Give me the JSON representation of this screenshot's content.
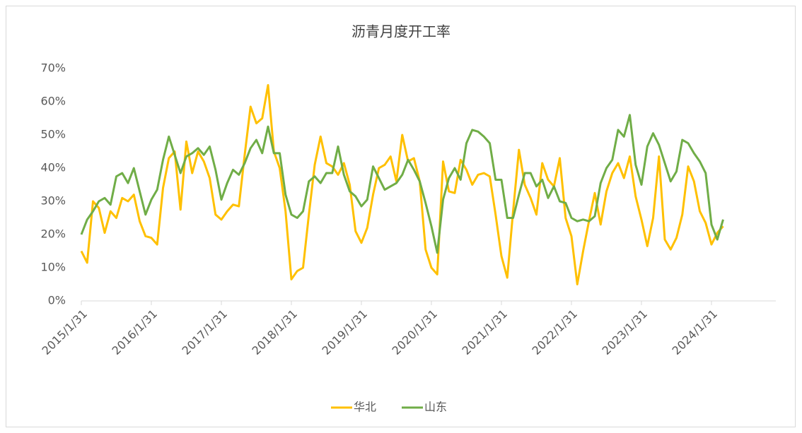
{
  "chart_data": {
    "type": "line",
    "title": "沥青月度开工率",
    "categories": [
      "2015/1/31",
      null,
      null,
      null,
      null,
      null,
      null,
      null,
      null,
      null,
      null,
      null,
      "2016/1/31",
      null,
      null,
      null,
      null,
      null,
      null,
      null,
      null,
      null,
      null,
      null,
      "2017/1/31",
      null,
      null,
      null,
      null,
      null,
      null,
      null,
      null,
      null,
      null,
      null,
      "2018/1/31",
      null,
      null,
      null,
      null,
      null,
      null,
      null,
      null,
      null,
      null,
      null,
      "2019/1/31",
      null,
      null,
      null,
      null,
      null,
      null,
      null,
      null,
      null,
      null,
      null,
      "2020/1/31",
      null,
      null,
      null,
      null,
      null,
      null,
      null,
      null,
      null,
      null,
      null,
      "2021/1/31",
      null,
      null,
      null,
      null,
      null,
      null,
      null,
      null,
      null,
      null,
      null,
      "2022/1/31",
      null,
      null,
      null,
      null,
      null,
      null,
      null,
      null,
      null,
      null,
      null,
      "2023/1/31",
      null,
      null,
      null,
      null,
      null,
      null,
      null,
      null,
      null,
      null,
      null,
      "2024/1/31",
      null,
      null
    ],
    "series": [
      {
        "name": "华北",
        "color": "#ffc000",
        "values": [
          15,
          11.5,
          30,
          28,
          20.5,
          27,
          25,
          31,
          30,
          32,
          24,
          19.5,
          19,
          17,
          34,
          43,
          45,
          27.5,
          48,
          38.5,
          45,
          42,
          37,
          26,
          24.5,
          27,
          29,
          28.5,
          44,
          58.5,
          53.5,
          55,
          65,
          45,
          40,
          27,
          6.5,
          9,
          10,
          26,
          41,
          49.5,
          41.5,
          40.5,
          38,
          41.5,
          35,
          21,
          17.5,
          22,
          32,
          40,
          41,
          43.5,
          36,
          50,
          42,
          43,
          36,
          15.5,
          10,
          8,
          42,
          33,
          32.5,
          42.5,
          39.5,
          35,
          38,
          38.5,
          37.5,
          26,
          13.5,
          7,
          27,
          45.5,
          35,
          31,
          26,
          41.5,
          36.5,
          34.5,
          43,
          25,
          19.5,
          5,
          15,
          24,
          32.5,
          23,
          33,
          38.5,
          41.5,
          37,
          43.5,
          31.5,
          24.5,
          16.5,
          25,
          43.5,
          18.5,
          15.5,
          19,
          26,
          40.5,
          36,
          27,
          23.5,
          17,
          20.5,
          22.5
        ]
      },
      {
        "name": "山东",
        "color": "#70ad47",
        "values": [
          20,
          24.5,
          27,
          30,
          31,
          29,
          37.5,
          38.5,
          35.5,
          40,
          33,
          26,
          30.5,
          33.5,
          42.5,
          49.5,
          44,
          38.5,
          43.5,
          44.5,
          46,
          44,
          46.5,
          39.5,
          30.5,
          35.5,
          39.5,
          38,
          41.5,
          46,
          48.5,
          44.5,
          52.5,
          44.5,
          44.5,
          32,
          26,
          25,
          27,
          36,
          37.5,
          35.5,
          38.5,
          38.5,
          46.5,
          38,
          33,
          31.5,
          28.5,
          30.5,
          40.5,
          37,
          33.5,
          34.5,
          35.5,
          38,
          42.5,
          39.5,
          36,
          29.5,
          22.5,
          14.5,
          30.5,
          37,
          40,
          36.5,
          47.5,
          51.5,
          51,
          49.5,
          47.5,
          36.5,
          36.5,
          25,
          25,
          32,
          38.5,
          38.5,
          34.5,
          36.5,
          31,
          34.5,
          30,
          29.5,
          25,
          24,
          24.5,
          24,
          25.5,
          35.5,
          40,
          42.5,
          51.5,
          49.5,
          56,
          41,
          35,
          46.5,
          50.5,
          47,
          41.5,
          36,
          39,
          48.5,
          47.5,
          44.5,
          42,
          38.5,
          23,
          18.5,
          24.5
        ]
      }
    ],
    "ylim": [
      0,
      70
    ],
    "yticks": [
      {
        "value": 0,
        "label": "0%"
      },
      {
        "value": 10,
        "label": "10%"
      },
      {
        "value": 20,
        "label": "20%"
      },
      {
        "value": 30,
        "label": "30%"
      },
      {
        "value": 40,
        "label": "40%"
      },
      {
        "value": 50,
        "label": "50%"
      },
      {
        "value": 60,
        "label": "60%"
      },
      {
        "value": 70,
        "label": "70%"
      }
    ],
    "grid": false,
    "legend": "bottom"
  }
}
